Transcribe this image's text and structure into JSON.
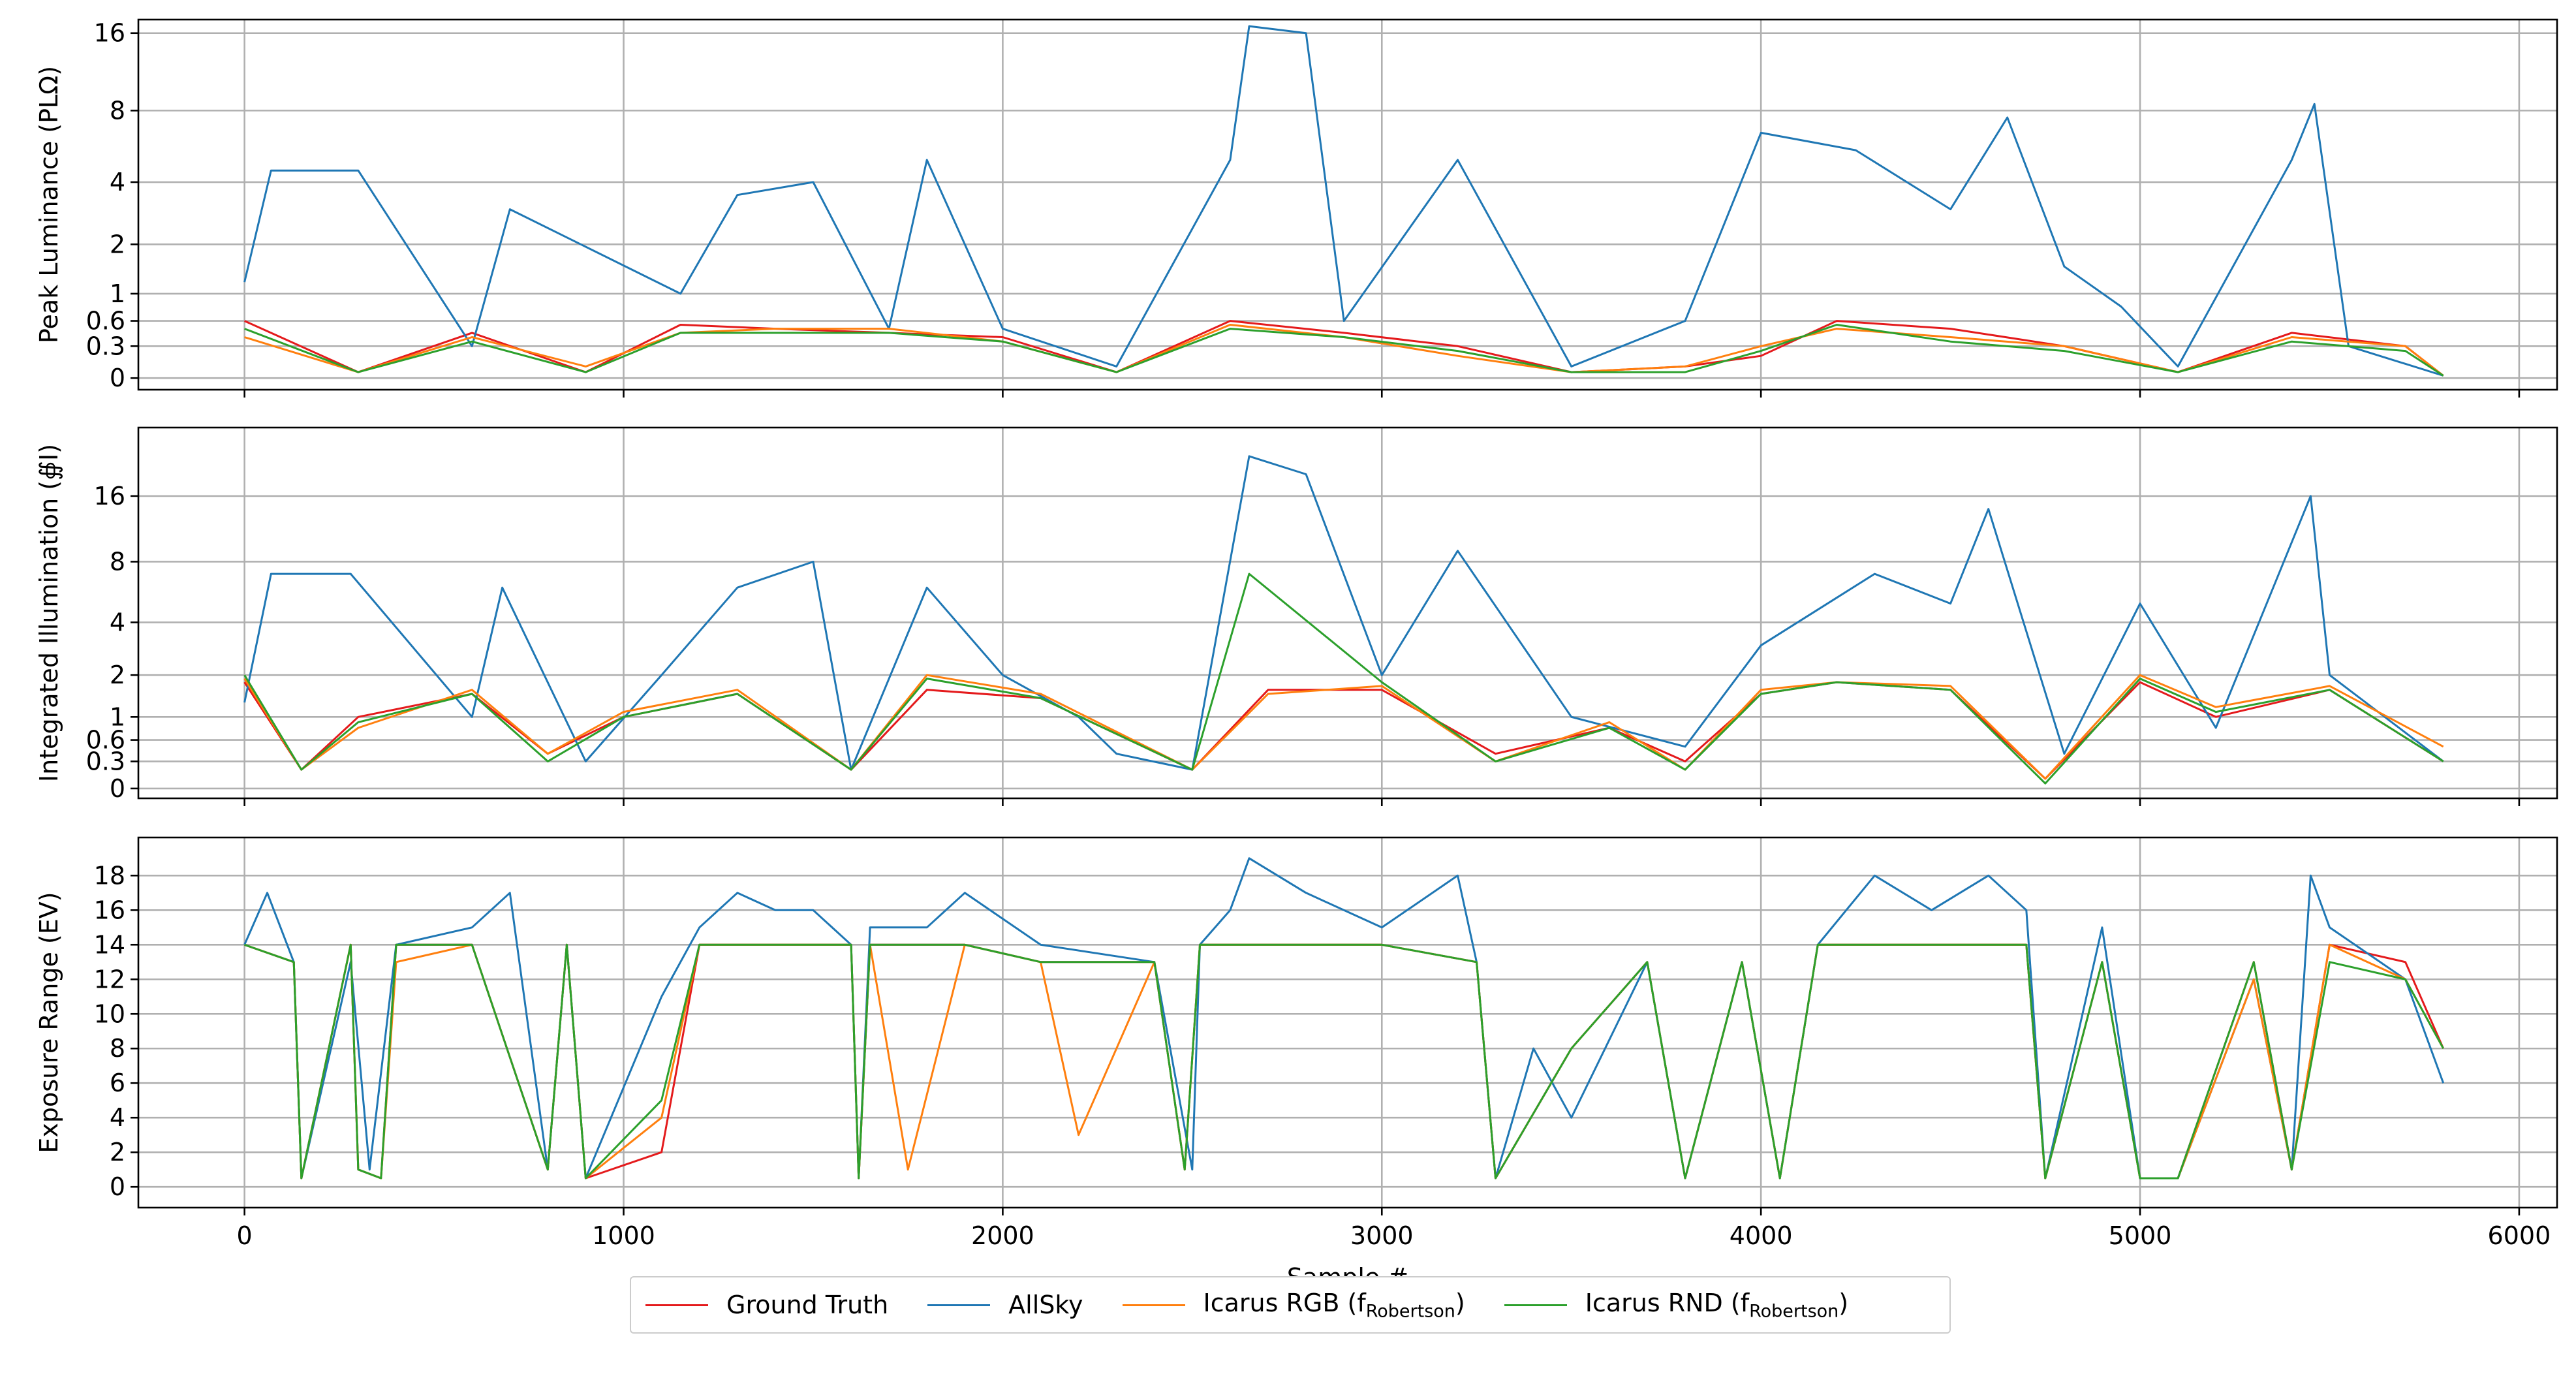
{
  "legend": {
    "items": [
      {
        "label": "Ground Truth",
        "color": "#e41a1c"
      },
      {
        "label": "AllSky",
        "color": "#1f77b4"
      },
      {
        "label": "Icarus RGB (f",
        "sub": "Robertson",
        "suffix": ")",
        "color": "#ff7f0e"
      },
      {
        "label": "Icarus RND (f",
        "sub": "Robertson",
        "suffix": ")",
        "color": "#2ca02c"
      }
    ]
  },
  "chart_data": [
    {
      "type": "line",
      "ylabel": "Peak Luminance (PLΩ)",
      "xlabel": "",
      "yscale": "symlog",
      "yticks": [
        "16",
        "8",
        "4",
        "2",
        "1",
        "0.6",
        "0.3",
        "0"
      ],
      "xlim": [
        -280,
        6100
      ],
      "ylim": [
        -0.1,
        18
      ],
      "grid": true,
      "series": [
        {
          "name": "Ground Truth",
          "x": [
            0,
            300,
            600,
            900,
            1150,
            1400,
            1700,
            2000,
            2300,
            2600,
            2900,
            3200,
            3500,
            3800,
            4000,
            4200,
            4500,
            4800,
            5100,
            5400,
            5700,
            5800
          ],
          "y": [
            0.6,
            0.05,
            0.45,
            0.05,
            0.55,
            0.5,
            0.45,
            0.4,
            0.05,
            0.6,
            0.45,
            0.3,
            0.05,
            0.1,
            0.2,
            0.6,
            0.5,
            0.3,
            0.05,
            0.45,
            0.3,
            0.02
          ]
        },
        {
          "name": "AllSky",
          "x": [
            0,
            70,
            300,
            600,
            700,
            1150,
            1300,
            1500,
            1700,
            1800,
            2000,
            2300,
            2600,
            2650,
            2800,
            2900,
            3200,
            3500,
            3800,
            4000,
            4250,
            4500,
            4650,
            4800,
            4950,
            5100,
            5400,
            5460,
            5550,
            5800
          ],
          "y": [
            1.2,
            4.5,
            4.5,
            0.3,
            3.0,
            1.0,
            3.5,
            4.0,
            0.5,
            5.0,
            0.5,
            0.1,
            5.0,
            17.0,
            16.0,
            0.6,
            5.0,
            0.1,
            0.6,
            6.5,
            5.5,
            3.0,
            7.5,
            1.5,
            0.8,
            0.1,
            5.0,
            8.5,
            0.3,
            0.02
          ]
        },
        {
          "name": "Icarus RGB (fRobertson)",
          "x": [
            0,
            300,
            600,
            900,
            1150,
            1400,
            1700,
            2000,
            2300,
            2600,
            2900,
            3200,
            3500,
            3800,
            4000,
            4200,
            4500,
            4800,
            5100,
            5400,
            5700,
            5800
          ],
          "y": [
            0.4,
            0.05,
            0.4,
            0.1,
            0.45,
            0.5,
            0.5,
            0.35,
            0.05,
            0.55,
            0.4,
            0.2,
            0.05,
            0.1,
            0.3,
            0.5,
            0.4,
            0.3,
            0.05,
            0.4,
            0.3,
            0.02
          ]
        },
        {
          "name": "Icarus RND (fRobertson)",
          "x": [
            0,
            300,
            600,
            900,
            1150,
            1400,
            1700,
            2000,
            2300,
            2600,
            2900,
            3200,
            3500,
            3800,
            4000,
            4200,
            4500,
            4800,
            5100,
            5400,
            5700,
            5800
          ],
          "y": [
            0.5,
            0.05,
            0.35,
            0.05,
            0.45,
            0.45,
            0.45,
            0.35,
            0.05,
            0.5,
            0.4,
            0.25,
            0.05,
            0.05,
            0.25,
            0.55,
            0.35,
            0.25,
            0.05,
            0.35,
            0.25,
            0.02
          ]
        }
      ]
    },
    {
      "type": "line",
      "ylabel": "Integrated Illumination (∯I)",
      "xlabel": "",
      "yscale": "symlog",
      "yticks": [
        "16",
        "8",
        "4",
        "2",
        "1",
        "0.6",
        "0.3",
        "0"
      ],
      "xlim": [
        -280,
        6100
      ],
      "ylim": [
        -0.1,
        32
      ],
      "grid": true,
      "series": [
        {
          "name": "Ground Truth",
          "x": [
            0,
            150,
            300,
            600,
            800,
            1000,
            1300,
            1600,
            1800,
            2100,
            2500,
            2700,
            3000,
            3300,
            3600,
            3800,
            4000,
            4200,
            4500,
            4750,
            5000,
            5200,
            5500,
            5800
          ],
          "y": [
            1.8,
            0.2,
            1.0,
            1.5,
            0.4,
            1.0,
            1.5,
            0.2,
            1.6,
            1.4,
            0.2,
            1.6,
            1.6,
            0.4,
            0.8,
            0.3,
            1.5,
            1.8,
            1.6,
            0.1,
            1.8,
            1.0,
            1.6,
            0.3
          ]
        },
        {
          "name": "AllSky",
          "x": [
            0,
            70,
            280,
            600,
            680,
            900,
            1100,
            1300,
            1500,
            1600,
            1800,
            2000,
            2200,
            2300,
            2500,
            2650,
            2800,
            3000,
            3200,
            3500,
            3800,
            4000,
            4300,
            4500,
            4600,
            4800,
            5000,
            5200,
            5450,
            5500,
            5800
          ],
          "y": [
            1.3,
            7.0,
            7.0,
            1.0,
            6.0,
            0.3,
            2.0,
            6.0,
            8.0,
            0.2,
            6.0,
            2.0,
            1.0,
            0.4,
            0.2,
            24.0,
            20.0,
            2.0,
            9.0,
            1.0,
            0.5,
            3.0,
            7.0,
            5.0,
            14.0,
            0.4,
            5.0,
            0.8,
            16.0,
            2.0,
            0.3
          ]
        },
        {
          "name": "Icarus RGB (fRobertson)",
          "x": [
            0,
            150,
            300,
            600,
            800,
            1000,
            1300,
            1600,
            1800,
            2100,
            2500,
            2700,
            3000,
            3300,
            3600,
            3800,
            4000,
            4200,
            4500,
            4750,
            5000,
            5200,
            5500,
            5800
          ],
          "y": [
            1.9,
            0.2,
            0.8,
            1.6,
            0.4,
            1.1,
            1.6,
            0.2,
            2.0,
            1.5,
            0.2,
            1.5,
            1.7,
            0.3,
            0.9,
            0.2,
            1.6,
            1.8,
            1.7,
            0.1,
            2.0,
            1.2,
            1.7,
            0.5
          ]
        },
        {
          "name": "Icarus RND (fRobertson)",
          "x": [
            0,
            150,
            300,
            600,
            800,
            1000,
            1300,
            1600,
            1800,
            2100,
            2500,
            2650,
            3000,
            3300,
            3600,
            3800,
            4000,
            4200,
            4500,
            4750,
            5000,
            5200,
            5500,
            5800
          ],
          "y": [
            2.0,
            0.2,
            0.9,
            1.5,
            0.3,
            1.0,
            1.5,
            0.2,
            1.9,
            1.4,
            0.2,
            7.0,
            1.8,
            0.3,
            0.8,
            0.2,
            1.5,
            1.8,
            1.6,
            0.05,
            1.9,
            1.1,
            1.6,
            0.3
          ]
        }
      ]
    },
    {
      "type": "line",
      "xlabel": "Sample #",
      "ylabel": "Exposure Range (EV)",
      "yscale": "linear",
      "xticks": [
        0,
        1000,
        2000,
        3000,
        4000,
        5000,
        6000
      ],
      "yticks": [
        0,
        2,
        4,
        6,
        8,
        10,
        12,
        14,
        16,
        18
      ],
      "xlim": [
        -280,
        6100
      ],
      "ylim": [
        -1.2,
        20.2
      ],
      "grid": true,
      "series": [
        {
          "name": "Ground Truth",
          "x": [
            0,
            130,
            150,
            280,
            300,
            360,
            400,
            600,
            800,
            850,
            900,
            1100,
            1200,
            1600,
            1620,
            1650,
            1900,
            2100,
            2400,
            2480,
            2520,
            2600,
            3000,
            3250,
            3300,
            3500,
            3700,
            3800,
            3950,
            4050,
            4150,
            4400,
            4700,
            4750,
            4900,
            5000,
            5100,
            5300,
            5400,
            5500,
            5700,
            5800
          ],
          "y": [
            14,
            13,
            0.5,
            14,
            1,
            0.5,
            14,
            14,
            1,
            14,
            0.5,
            2,
            14,
            14,
            0.5,
            14,
            14,
            13,
            13,
            1,
            14,
            14,
            14,
            13,
            0.5,
            8,
            13,
            0.5,
            13,
            0.5,
            14,
            14,
            14,
            0.5,
            13,
            0.5,
            0.5,
            13,
            1,
            14,
            13,
            8
          ]
        },
        {
          "name": "AllSky",
          "x": [
            0,
            60,
            130,
            150,
            280,
            330,
            400,
            600,
            700,
            800,
            850,
            900,
            1100,
            1200,
            1300,
            1400,
            1500,
            1600,
            1620,
            1650,
            1800,
            1900,
            2100,
            2400,
            2500,
            2520,
            2600,
            2650,
            2800,
            3000,
            3200,
            3250,
            3300,
            3400,
            3500,
            3700,
            3800,
            3950,
            4050,
            4150,
            4300,
            4450,
            4600,
            4700,
            4750,
            4900,
            5000,
            5100,
            5300,
            5400,
            5450,
            5500,
            5700,
            5800
          ],
          "y": [
            14,
            17,
            13,
            0.5,
            13,
            1,
            14,
            15,
            17,
            1,
            14,
            0.5,
            11,
            15,
            17,
            16,
            16,
            14,
            0.5,
            15,
            15,
            17,
            14,
            13,
            1,
            14,
            16,
            19,
            17,
            15,
            18,
            13,
            0.5,
            8,
            4,
            13,
            0.5,
            13,
            0.5,
            14,
            18,
            16,
            18,
            16,
            0.5,
            15,
            0.5,
            0.5,
            12,
            1,
            18,
            15,
            12,
            6
          ]
        },
        {
          "name": "Icarus RGB (fRobertson)",
          "x": [
            0,
            130,
            150,
            280,
            300,
            360,
            400,
            600,
            800,
            850,
            900,
            1100,
            1200,
            1600,
            1620,
            1650,
            1750,
            1900,
            2100,
            2200,
            2400,
            2480,
            2520,
            2600,
            3000,
            3250,
            3300,
            3500,
            3700,
            3800,
            3950,
            4050,
            4150,
            4400,
            4700,
            4750,
            4900,
            5000,
            5100,
            5300,
            5400,
            5500,
            5700,
            5800
          ],
          "y": [
            14,
            13,
            0.5,
            14,
            1,
            0.5,
            13,
            14,
            1,
            14,
            0.5,
            4,
            14,
            14,
            0.5,
            14,
            1,
            14,
            13,
            3,
            13,
            1,
            14,
            14,
            14,
            13,
            0.5,
            8,
            13,
            0.5,
            13,
            0.5,
            14,
            14,
            14,
            0.5,
            13,
            0.5,
            0.5,
            12,
            1,
            14,
            12,
            8
          ]
        },
        {
          "name": "Icarus RND (fRobertson)",
          "x": [
            0,
            130,
            150,
            280,
            300,
            360,
            400,
            600,
            800,
            850,
            900,
            1100,
            1200,
            1600,
            1620,
            1650,
            1900,
            2100,
            2400,
            2480,
            2520,
            2600,
            3000,
            3250,
            3300,
            3500,
            3700,
            3800,
            3950,
            4050,
            4150,
            4400,
            4700,
            4750,
            4900,
            5000,
            5100,
            5300,
            5400,
            5500,
            5700,
            5800
          ],
          "y": [
            14,
            13,
            0.5,
            14,
            1,
            0.5,
            14,
            14,
            1,
            14,
            0.5,
            5,
            14,
            14,
            0.5,
            14,
            14,
            13,
            13,
            1,
            14,
            14,
            14,
            13,
            0.5,
            8,
            13,
            0.5,
            13,
            0.5,
            14,
            14,
            14,
            0.5,
            13,
            0.5,
            0.5,
            13,
            1,
            13,
            12,
            8
          ]
        }
      ]
    }
  ]
}
